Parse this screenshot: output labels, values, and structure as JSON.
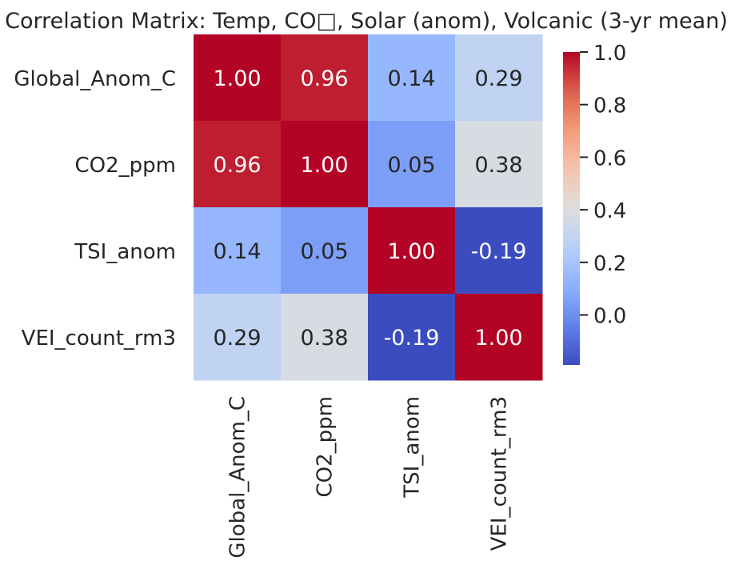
{
  "chart_data": {
    "type": "heatmap",
    "title": "Correlation Matrix: Temp, CO□, Solar (anom), Volcanic (3-yr mean)",
    "rows": [
      "Global_Anom_C",
      "CO2_ppm",
      "TSI_anom",
      "VEI_count_rm3"
    ],
    "columns": [
      "Global_Anom_C",
      "CO2_ppm",
      "TSI_anom",
      "VEI_count_rm3"
    ],
    "values": [
      [
        1.0,
        0.96,
        0.14,
        0.29
      ],
      [
        0.96,
        1.0,
        0.05,
        0.38
      ],
      [
        0.14,
        0.05,
        1.0,
        -0.19
      ],
      [
        0.29,
        0.38,
        -0.19,
        1.0
      ]
    ],
    "value_format": "0.00",
    "colormap": "coolwarm",
    "color_range": [
      -0.19,
      1.0
    ],
    "colorbar": {
      "ticks": [
        "0.0",
        "0.2",
        "0.4",
        "0.6",
        "0.8",
        "1.0"
      ]
    },
    "annotation_colors": {
      "light": "#ffffff",
      "dark": "#262626"
    }
  }
}
